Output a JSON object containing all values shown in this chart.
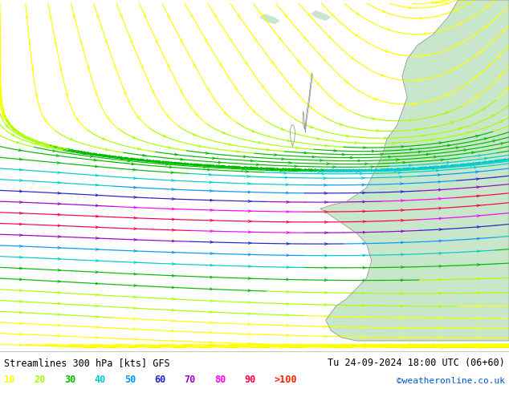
{
  "title_left": "Streamlines 300 hPa [kts] GFS",
  "title_right": "Tu 24-09-2024 18:00 UTC (06+60)",
  "credit": "©weatheronline.co.uk",
  "legend_values": [
    "10",
    "20",
    "30",
    "40",
    "50",
    "60",
    "70",
    "80",
    "90",
    ">100"
  ],
  "legend_colors": [
    "#ffff00",
    "#aaff00",
    "#00bb00",
    "#00cccc",
    "#0099ff",
    "#2222cc",
    "#9900cc",
    "#ff00ff",
    "#ff0044",
    "#ff2200"
  ],
  "bg_color": "#d8d8d8",
  "land_color": "#c8e6c9",
  "coast_color": "#888888",
  "figsize": [
    6.34,
    4.9
  ],
  "dpi": 100
}
